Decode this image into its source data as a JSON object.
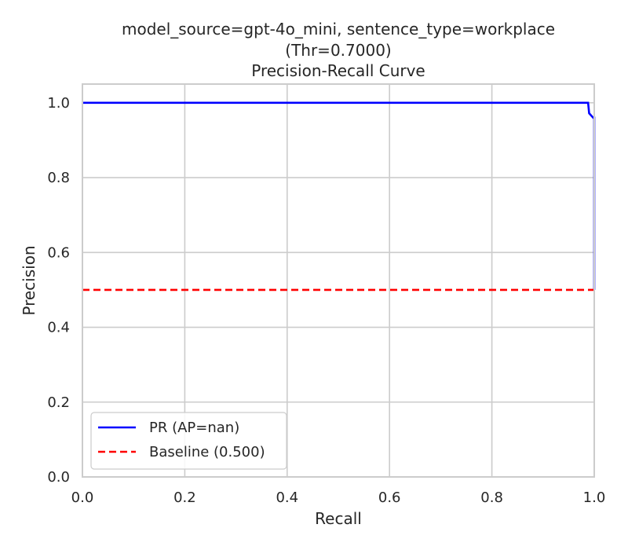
{
  "chart_data": {
    "type": "line",
    "title_lines": [
      "model_source=gpt-4o_mini, sentence_type=workplace",
      "(Thr=0.7000)",
      "Precision-Recall Curve"
    ],
    "xlabel": "Recall",
    "ylabel": "Precision",
    "xlim": [
      0.0,
      1.0
    ],
    "ylim": [
      0.0,
      1.05
    ],
    "xticks": [
      0.0,
      0.2,
      0.4,
      0.6,
      0.8,
      1.0
    ],
    "yticks": [
      0.0,
      0.2,
      0.4,
      0.6,
      0.8,
      1.0
    ],
    "xtick_labels": [
      "0.0",
      "0.2",
      "0.4",
      "0.6",
      "0.8",
      "1.0"
    ],
    "ytick_labels": [
      "0.0",
      "0.2",
      "0.4",
      "0.6",
      "0.8",
      "1.0"
    ],
    "grid": true,
    "legend_position": "lower-left",
    "series": [
      {
        "name": "PR (AP=nan)",
        "color": "#0000ff",
        "style": "solid",
        "x": [
          0.0,
          0.988,
          0.99,
          0.998,
          1.0,
          1.0
        ],
        "y": [
          1.0,
          1.0,
          0.972,
          0.96,
          0.96,
          0.5
        ]
      },
      {
        "name": "Baseline (0.500)",
        "color": "#ff0000",
        "style": "dashed",
        "x": [
          0.0,
          1.0
        ],
        "y": [
          0.5,
          0.5
        ]
      }
    ]
  }
}
